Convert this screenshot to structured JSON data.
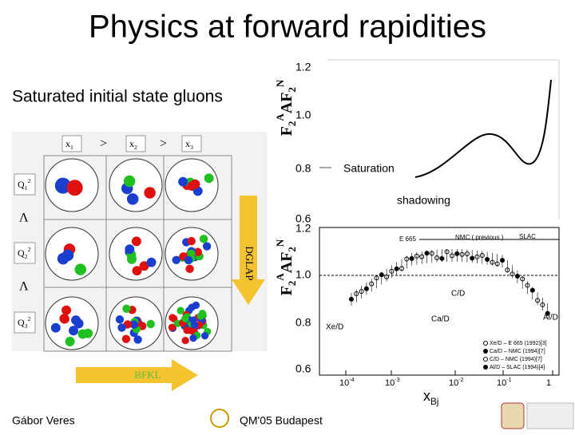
{
  "slide": {
    "title": "Physics at forward rapidities",
    "subtitle": "Saturated initial state gluons",
    "gluon_grid": {
      "x_labels": [
        {
          "base": "x",
          "sub": "1"
        },
        {
          "base": "x",
          "sub": "2"
        },
        {
          "base": "x",
          "sub": "3"
        }
      ],
      "x_separator": ">",
      "q_labels": [
        {
          "base": "Q",
          "sup": "2",
          "sub": "1"
        },
        {
          "base": "Q",
          "sup": "2",
          "sub": "2"
        },
        {
          "base": "Q",
          "sup": "2",
          "sub": "3"
        }
      ],
      "q_separator": "Λ",
      "vertical_arrow": "DGLAP",
      "horizontal_arrow": "BFKL"
    },
    "top_plot": {
      "y_label": {
        "a": "F",
        "a_sub": "2",
        "a_sup": "A",
        "b": "AF",
        "b_sub": "2",
        "b_sup": "N"
      },
      "y_ticks": [
        "1.2",
        "1.0",
        "0.8",
        "0.6"
      ],
      "annotations": {
        "saturation": "Saturation",
        "shadowing": "shadowing"
      }
    },
    "bottom_plot": {
      "y_label": {
        "a": "F",
        "a_sub": "2",
        "a_sup": "A",
        "b": "AF",
        "b_sub": "2",
        "b_sup": "N"
      },
      "y_ticks": [
        "1.2",
        "1.0",
        "0.8",
        "0.6"
      ],
      "x_ticks": [
        {
          "base": "10",
          "exp": "-4"
        },
        {
          "base": "10",
          "exp": "-3"
        },
        {
          "base": "10",
          "exp": "-2"
        },
        {
          "base": "10",
          "exp": "-1"
        },
        {
          "base": "1",
          "exp": ""
        }
      ],
      "x_label": {
        "base": "x",
        "sub": "Bj"
      },
      "labels": [
        "E 665",
        "NMC ( previous )",
        "SLAC",
        "C/D",
        "Ca/D",
        "Xe/D",
        "Al/D"
      ],
      "legend": [
        "Xe/D – E 665 (1992)[3]",
        "Ca/D – NMC (1994)[7]",
        "C/D – NMC (1994)[7]",
        "Al/D – SLAC (1994)[4]"
      ]
    },
    "footer": {
      "author": "Gábor Veres",
      "event": "QM'05 Budapest"
    }
  }
}
